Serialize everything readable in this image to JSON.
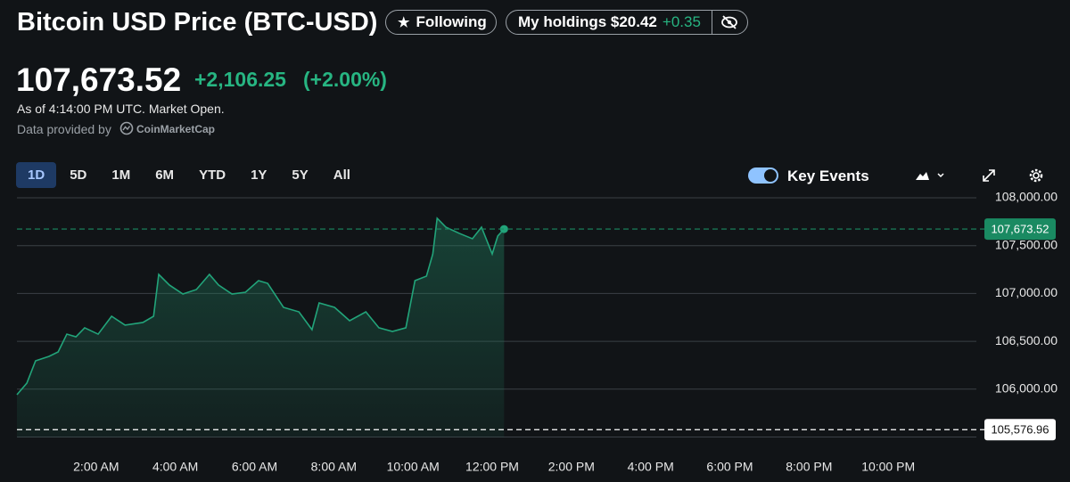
{
  "header": {
    "title": "Bitcoin USD Price (BTC-USD)",
    "follow_button": "Following",
    "holdings_label": "My holdings $20.42",
    "holdings_change": "+0.35"
  },
  "quote": {
    "price": "107,673.52",
    "change": "+2,106.25",
    "change_percent": "(+2.00%)",
    "as_of": "As of 4:14:00 PM UTC. Market Open.",
    "provider_prefix": "Data provided by",
    "provider": "CoinMarketCap"
  },
  "toolbar": {
    "ranges": [
      "1D",
      "5D",
      "1M",
      "6M",
      "YTD",
      "1Y",
      "5Y",
      "All"
    ],
    "active_range": "1D",
    "key_events": "Key Events"
  },
  "chart_data": {
    "type": "line",
    "x": [
      0,
      0.25,
      0.47,
      0.81,
      1.04,
      1.26,
      1.49,
      1.71,
      2.05,
      2.39,
      2.73,
      3.18,
      3.45,
      3.58,
      3.85,
      4.19,
      4.53,
      4.86,
      5.09,
      5.43,
      5.77,
      6.1,
      6.33,
      6.73,
      7.12,
      7.45,
      7.63,
      8.02,
      8.4,
      8.81,
      9.14,
      9.48,
      9.82,
      10.05,
      10.34,
      10.5,
      10.61,
      10.83,
      11.17,
      11.5,
      11.73,
      12.0,
      12.14,
      12.3
    ],
    "series": [
      {
        "color": "#22a47a",
        "values": [
          105942,
          106063,
          106296,
          106343,
          106389,
          106575,
          106547,
          106641,
          106575,
          106762,
          106669,
          106697,
          106762,
          107199,
          107088,
          106994,
          107041,
          107199,
          107088,
          106994,
          107013,
          107134,
          107106,
          106855,
          106808,
          106622,
          106901,
          106855,
          106715,
          106808,
          106641,
          106603,
          106641,
          107134,
          107181,
          107413,
          107786,
          107693,
          107628,
          107572,
          107693,
          107413,
          107600,
          107673.52
        ]
      }
    ],
    "xlim": [
      0,
      24
    ],
    "xticks": [
      {
        "value": 2,
        "label": "2:00 AM"
      },
      {
        "value": 4,
        "label": "4:00 AM"
      },
      {
        "value": 6,
        "label": "6:00 AM"
      },
      {
        "value": 8,
        "label": "8:00 AM"
      },
      {
        "value": 10,
        "label": "10:00 AM"
      },
      {
        "value": 12,
        "label": "12:00 PM"
      },
      {
        "value": 14,
        "label": "2:00 PM"
      },
      {
        "value": 16,
        "label": "4:00 PM"
      },
      {
        "value": 18,
        "label": "6:00 PM"
      },
      {
        "value": 20,
        "label": "8:00 PM"
      },
      {
        "value": 22,
        "label": "10:00 PM"
      }
    ],
    "ylim": [
      105500,
      108000
    ],
    "yticks": [
      {
        "value": 106000,
        "label": "106,000.00"
      },
      {
        "value": 106500,
        "label": "106,500.00"
      },
      {
        "value": 107000,
        "label": "107,000.00"
      },
      {
        "value": 107500,
        "label": "107,500.00"
      },
      {
        "value": 108000,
        "label": "108,000.00"
      }
    ],
    "grid": true,
    "reference_lines": [
      {
        "value": 107673.52,
        "label": "107,673.52",
        "color": "#1a8a62"
      },
      {
        "value": 105576.96,
        "label": "105,576.96",
        "color": "#ffffff"
      }
    ]
  }
}
